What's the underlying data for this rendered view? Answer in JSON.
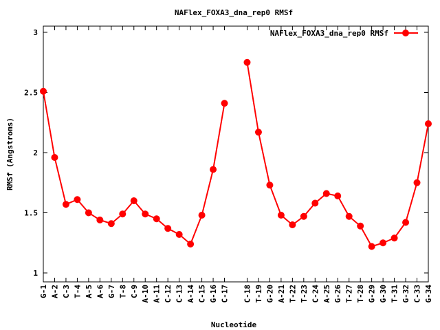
{
  "chart_data": {
    "type": "line",
    "title": "NAFlex_FOXA3_dna_rep0 RMSf",
    "xlabel": "Nucleotide",
    "ylabel": "RMSf (Angstroms)",
    "ylim": [
      0.9,
      3.05
    ],
    "yticks": [
      1,
      1.5,
      2,
      2.5,
      3
    ],
    "grid": false,
    "legend_position": "top-right",
    "color": "#ff0000",
    "series": [
      {
        "name": "NAFlex_FOXA3_dna_rep0 RMSf",
        "segments": [
          {
            "labels": [
              "G-1",
              "A-2",
              "C-3",
              "T-4",
              "A-5",
              "A-6",
              "G-7",
              "T-8",
              "C-9",
              "A-10",
              "A-11",
              "C-12",
              "C-13",
              "A-14",
              "C-15",
              "G-16",
              "C-17"
            ],
            "values": [
              2.51,
              1.96,
              1.57,
              1.61,
              1.5,
              1.44,
              1.41,
              1.49,
              1.6,
              1.49,
              1.45,
              1.37,
              1.32,
              1.24,
              1.48,
              1.86,
              2.41
            ]
          },
          {
            "labels": [
              "C-18",
              "T-19",
              "G-20",
              "A-21",
              "T-22",
              "T-23",
              "C-24",
              "A-25",
              "G-26",
              "T-27",
              "T-28",
              "G-29",
              "G-30",
              "T-31",
              "G-32",
              "C-33",
              "G-34"
            ],
            "values": [
              2.75,
              2.17,
              1.73,
              1.48,
              1.4,
              1.47,
              1.58,
              1.66,
              1.64,
              1.47,
              1.39,
              1.22,
              1.25,
              1.29,
              1.42,
              1.75,
              2.24
            ]
          }
        ]
      }
    ]
  }
}
